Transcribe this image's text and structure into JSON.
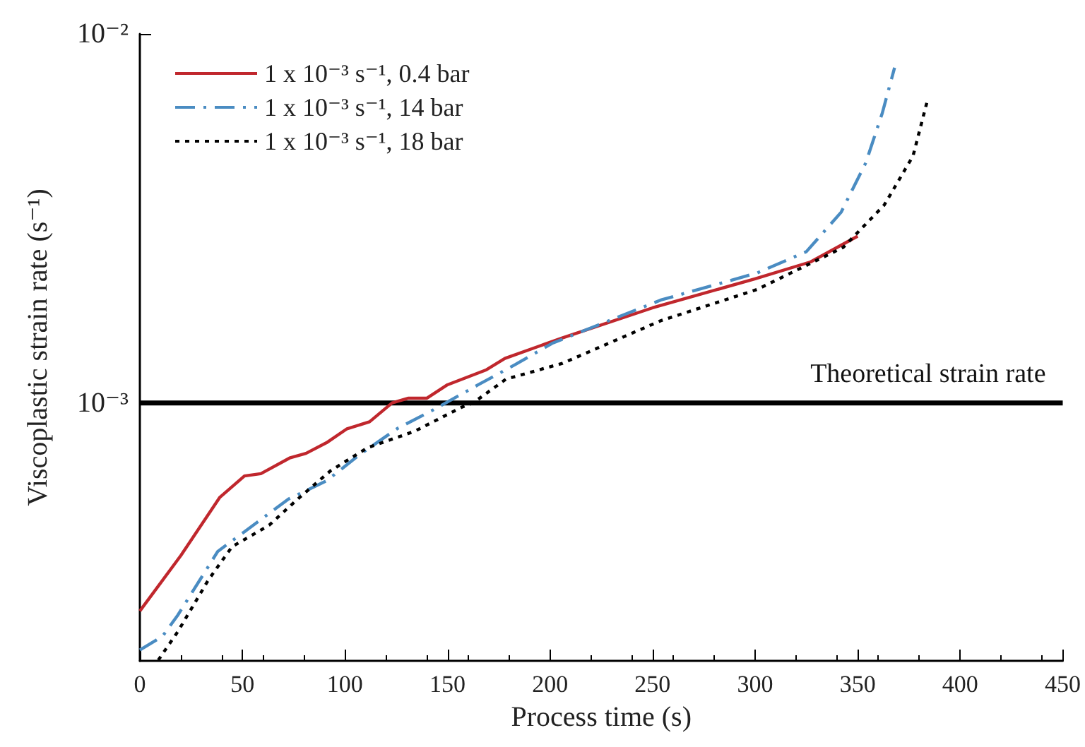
{
  "chart_data": {
    "type": "line",
    "xlabel": "Process time (s)",
    "ylabel": "Viscoplastic strain rate (s⁻¹)",
    "log": "y",
    "xlim": [
      0,
      450
    ],
    "xticks": [
      0,
      50,
      100,
      150,
      200,
      250,
      300,
      350,
      400,
      450
    ],
    "ylim": [
      0.0002,
      0.01
    ],
    "yticks": [
      {
        "value": 0.001,
        "label": "10⁻³"
      },
      {
        "value": 0.01,
        "label": "10⁻²"
      }
    ],
    "grid": false,
    "legend": "top left",
    "marker": "none",
    "ref_lines": [
      {
        "axis": "y",
        "value": 0.001,
        "label": "Theoretical strain rate",
        "color": "#000000"
      }
    ],
    "series": [
      {
        "name": "1 x 10⁻³ s⁻¹, 0.4 bar",
        "color": "#c0272d",
        "line_style": "solid",
        "x": [
          0,
          20,
          39,
          51,
          59,
          73,
          81,
          91,
          101,
          112,
          123,
          131,
          140,
          150,
          169,
          178,
          197,
          206,
          250,
          300,
          327,
          350
        ],
        "values": [
          0.000273,
          0.000386,
          0.000555,
          0.000634,
          0.000643,
          0.000709,
          0.00073,
          0.00078,
          0.000851,
          0.000889,
          0.001,
          0.00103,
          0.00103,
          0.00112,
          0.00123,
          0.00132,
          0.00144,
          0.0015,
          0.00181,
          0.00217,
          0.00241,
          0.00283
        ]
      },
      {
        "name": "1 x 10⁻³ s⁻¹, 14 bar",
        "color": "#4a8cc2",
        "line_style": "dashed",
        "x": [
          0,
          11,
          18.5,
          38,
          52,
          72.5,
          91,
          107,
          125.5,
          143,
          165,
          183,
          201,
          254,
          301,
          325,
          342,
          354,
          362,
          368
        ],
        "values": [
          0.000214,
          0.000233,
          0.000266,
          0.000396,
          0.000452,
          0.000549,
          0.000615,
          0.000723,
          0.000852,
          0.000957,
          0.00112,
          0.00127,
          0.00145,
          0.0019,
          0.00225,
          0.00257,
          0.00329,
          0.00448,
          0.0061,
          0.0081
        ]
      },
      {
        "name": "1 x 10⁻³ s⁻¹, 18 bar",
        "color": "#000000",
        "line_style": "dotted",
        "x": [
          9,
          18.5,
          33.5,
          45,
          63,
          77,
          93,
          111,
          134,
          157,
          162.5,
          178.5,
          206,
          254,
          301,
          343,
          363,
          377,
          384
        ],
        "values": [
          0.000201,
          0.00024,
          0.000332,
          0.000408,
          0.000466,
          0.000549,
          0.000655,
          0.000756,
          0.000838,
          0.000974,
          0.001,
          0.00116,
          0.00128,
          0.00167,
          0.00203,
          0.00264,
          0.00344,
          0.00467,
          0.0066
        ]
      }
    ]
  }
}
